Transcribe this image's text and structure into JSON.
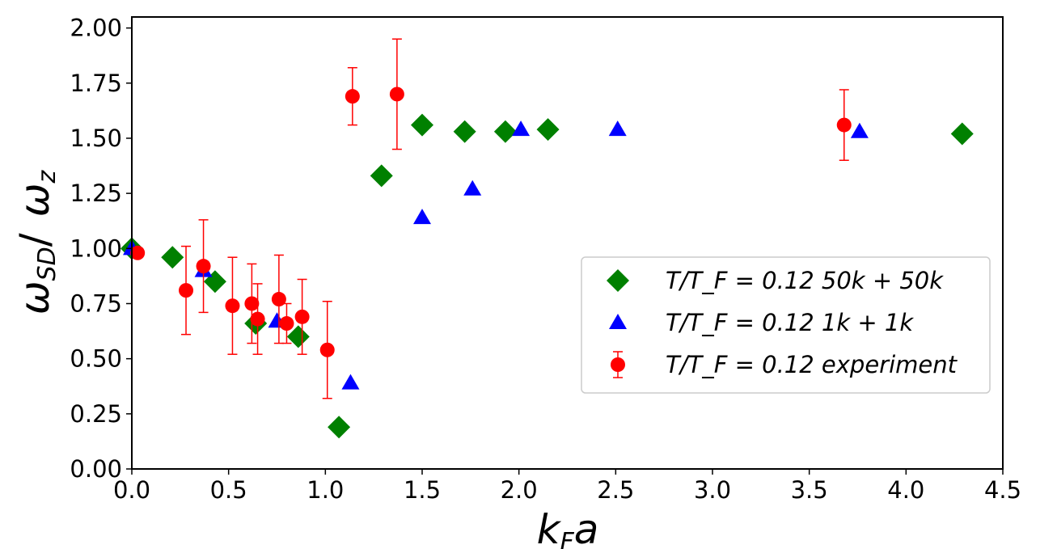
{
  "chart_data": {
    "type": "scatter",
    "title": "",
    "xlabel": "k_F a",
    "ylabel": "ω_SD/ ω_z",
    "xlim": [
      0.0,
      4.5
    ],
    "ylim": [
      0.0,
      2.05
    ],
    "xticks": [
      "0.0",
      "0.5",
      "1.0",
      "1.5",
      "2.0",
      "2.5",
      "3.0",
      "3.5",
      "4.0",
      "4.5"
    ],
    "xtick_values": [
      0.0,
      0.5,
      1.0,
      1.5,
      2.0,
      2.5,
      3.0,
      3.5,
      4.0,
      4.5
    ],
    "yticks": [
      "0.00",
      "0.25",
      "0.50",
      "0.75",
      "1.00",
      "1.25",
      "1.50",
      "1.75",
      "2.00"
    ],
    "ytick_values": [
      0.0,
      0.25,
      0.5,
      0.75,
      1.0,
      1.25,
      1.5,
      1.75,
      2.0
    ],
    "grid": false,
    "legend_position": "center-right",
    "series": [
      {
        "name": "T/T_F = 0.12 50k + 50k",
        "legend_label": "T/T_F = 0.12  50k + 50k",
        "marker": "diamond",
        "color": "#008000",
        "points": [
          {
            "x": 0.0,
            "y": 1.0
          },
          {
            "x": 0.21,
            "y": 0.96
          },
          {
            "x": 0.43,
            "y": 0.85
          },
          {
            "x": 0.64,
            "y": 0.66
          },
          {
            "x": 0.86,
            "y": 0.6
          },
          {
            "x": 1.07,
            "y": 0.19
          },
          {
            "x": 1.29,
            "y": 1.33
          },
          {
            "x": 1.5,
            "y": 1.56
          },
          {
            "x": 1.72,
            "y": 1.53
          },
          {
            "x": 1.93,
            "y": 1.53
          },
          {
            "x": 2.15,
            "y": 1.54
          },
          {
            "x": 4.29,
            "y": 1.52
          }
        ]
      },
      {
        "name": "T/T_F = 0.12 1k + 1k",
        "legend_label": "T/T_F = 0.12  1k + 1k",
        "marker": "triangle",
        "color": "#0000ff",
        "points": [
          {
            "x": 0.0,
            "y": 1.0
          },
          {
            "x": 0.37,
            "y": 0.9
          },
          {
            "x": 0.75,
            "y": 0.67
          },
          {
            "x": 1.13,
            "y": 0.39
          },
          {
            "x": 1.5,
            "y": 1.14
          },
          {
            "x": 1.76,
            "y": 1.27
          },
          {
            "x": 2.01,
            "y": 1.54
          },
          {
            "x": 2.51,
            "y": 1.54
          },
          {
            "x": 3.76,
            "y": 1.53
          }
        ]
      },
      {
        "name": "T/T_F = 0.12 experiment",
        "legend_label": "T/T_F = 0.12  experiment",
        "marker": "circle",
        "color": "#ff0000",
        "errorbars": true,
        "points": [
          {
            "x": 0.03,
            "y": 0.98,
            "err": 0.0
          },
          {
            "x": 0.28,
            "y": 0.81,
            "err": 0.2
          },
          {
            "x": 0.37,
            "y": 0.92,
            "err": 0.21
          },
          {
            "x": 0.52,
            "y": 0.74,
            "err": 0.22
          },
          {
            "x": 0.62,
            "y": 0.75,
            "err": 0.18
          },
          {
            "x": 0.65,
            "y": 0.68,
            "err": 0.16
          },
          {
            "x": 0.76,
            "y": 0.77,
            "err": 0.2
          },
          {
            "x": 0.8,
            "y": 0.66,
            "err": 0.09
          },
          {
            "x": 0.88,
            "y": 0.69,
            "err": 0.17
          },
          {
            "x": 1.01,
            "y": 0.54,
            "err": 0.22
          },
          {
            "x": 1.14,
            "y": 1.69,
            "err": 0.13
          },
          {
            "x": 1.37,
            "y": 1.7,
            "err": 0.25
          },
          {
            "x": 3.68,
            "y": 1.56,
            "err": 0.16
          }
        ]
      }
    ]
  }
}
